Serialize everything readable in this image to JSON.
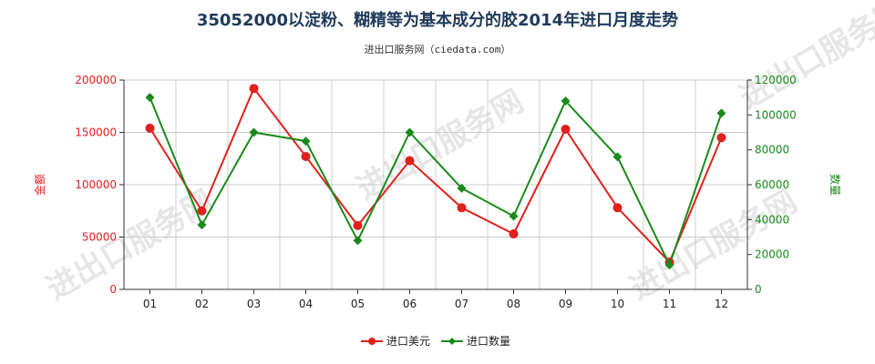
{
  "header": {
    "title": "35052000以淀粉、糊精等为基本成分的胶2014年进口月度走势",
    "subtitle": "进出口服务网（ciedata.com）"
  },
  "watermark_text": "进出口服务网",
  "colors": {
    "left_series": "#e0201b",
    "right_series": "#1a8a1a",
    "grid": "#cccccc"
  },
  "chart_data": {
    "type": "line",
    "title": "35052000以淀粉、糊精等为基本成分的胶2014年进口月度走势",
    "categories": [
      "01",
      "02",
      "03",
      "04",
      "05",
      "06",
      "07",
      "08",
      "09",
      "10",
      "11",
      "12"
    ],
    "series": [
      {
        "name": "进口美元",
        "axis": "left",
        "marker": "circle",
        "values": [
          154000,
          75000,
          192000,
          127000,
          61000,
          123000,
          78000,
          53000,
          153000,
          78000,
          26000,
          145000
        ]
      },
      {
        "name": "进口数量",
        "axis": "right",
        "marker": "diamond",
        "values": [
          110000,
          37000,
          90000,
          85000,
          28000,
          90000,
          58000,
          42000,
          108000,
          76000,
          14000,
          101000
        ]
      }
    ],
    "ylabel_left": "金额",
    "ylabel_right": "数量",
    "ylim_left": [
      0,
      200000
    ],
    "ylim_right": [
      0,
      120000
    ],
    "yticks_left": [
      "0",
      "50000",
      "100000",
      "150000",
      "200000"
    ],
    "yticks_right": [
      "0",
      "20000",
      "40000",
      "60000",
      "80000",
      "100000",
      "120000"
    ],
    "grid": true,
    "legend_position": "bottom-center"
  }
}
